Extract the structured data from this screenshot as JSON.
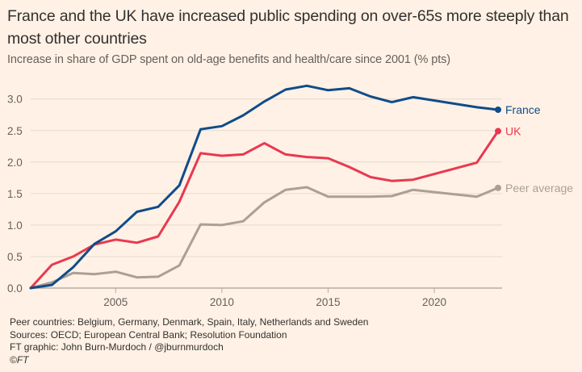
{
  "header": {
    "title": "France and the UK have increased public spending on over-65s more steeply than most other countries",
    "subtitle": "Increase in share of GDP spent on old-age benefits and health/care since 2001 (% pts)"
  },
  "footer": {
    "note": "Peer countries: Belgium, Germany, Denmark, Spain, Italy, Netherlands and Sweden",
    "sources": "Sources: OECD; European Central Bank; Resolution Foundation",
    "credit": "FT graphic: John Burn-Murdoch / @jburnmurdoch",
    "copyright": "©FT"
  },
  "chart_data": {
    "type": "line",
    "title": "France and the UK have increased public spending on over-65s more steeply than most other countries",
    "subtitle": "Increase in share of GDP spent on old-age benefits and health/care since 2001 (% pts)",
    "xlabel": "",
    "ylabel": "",
    "xlim": [
      2001,
      2023
    ],
    "ylim": [
      0,
      3.2
    ],
    "x_ticks": [
      2005,
      2010,
      2015,
      2020
    ],
    "x_tick_labels": [
      "2005",
      "2010",
      "2015",
      "2020"
    ],
    "y_ticks": [
      0,
      0.5,
      1,
      1.5,
      2,
      2.5,
      3
    ],
    "y_tick_labels": [
      "0.0",
      "0.5",
      "1.0",
      "1.5",
      "2.0",
      "2.5",
      "3.0"
    ],
    "grid": true,
    "legend": "direct labels at line ends (right)",
    "series": [
      {
        "name": "France",
        "color": "#0f4c8a",
        "x": [
          2001,
          2002,
          2003,
          2004,
          2005,
          2006,
          2007,
          2008,
          2009,
          2010,
          2011,
          2012,
          2013,
          2014,
          2015,
          2016,
          2017,
          2018,
          2019,
          2022,
          2023
        ],
        "values": [
          0,
          0.05,
          0.33,
          0.7,
          0.9,
          1.21,
          1.29,
          1.63,
          2.52,
          2.57,
          2.74,
          2.96,
          3.15,
          3.21,
          3.14,
          3.17,
          3.04,
          2.95,
          3.03,
          2.87,
          2.83
        ]
      },
      {
        "name": "UK",
        "color": "#e8394f",
        "x": [
          2001,
          2002,
          2003,
          2004,
          2005,
          2006,
          2007,
          2008,
          2009,
          2010,
          2011,
          2012,
          2013,
          2014,
          2015,
          2016,
          2017,
          2018,
          2019,
          2022,
          2023
        ],
        "values": [
          0,
          0.37,
          0.5,
          0.69,
          0.77,
          0.72,
          0.82,
          1.37,
          2.14,
          2.1,
          2.12,
          2.3,
          2.12,
          2.08,
          2.06,
          1.92,
          1.76,
          1.7,
          1.72,
          1.99,
          2.49
        ]
      },
      {
        "name": "Peer average",
        "color": "#ab9f97",
        "x": [
          2001,
          2002,
          2003,
          2004,
          2005,
          2006,
          2007,
          2008,
          2009,
          2010,
          2011,
          2012,
          2013,
          2014,
          2015,
          2016,
          2017,
          2018,
          2019,
          2022,
          2023
        ],
        "values": [
          0,
          0.09,
          0.24,
          0.22,
          0.26,
          0.17,
          0.18,
          0.36,
          1.01,
          1.0,
          1.06,
          1.36,
          1.56,
          1.6,
          1.45,
          1.45,
          1.45,
          1.46,
          1.56,
          1.45,
          1.59
        ]
      }
    ]
  },
  "colors": {
    "background": "#fff1e5",
    "grid": "#e6d9ce",
    "axis": "#b7aca3",
    "tick_text": "#66605c"
  }
}
